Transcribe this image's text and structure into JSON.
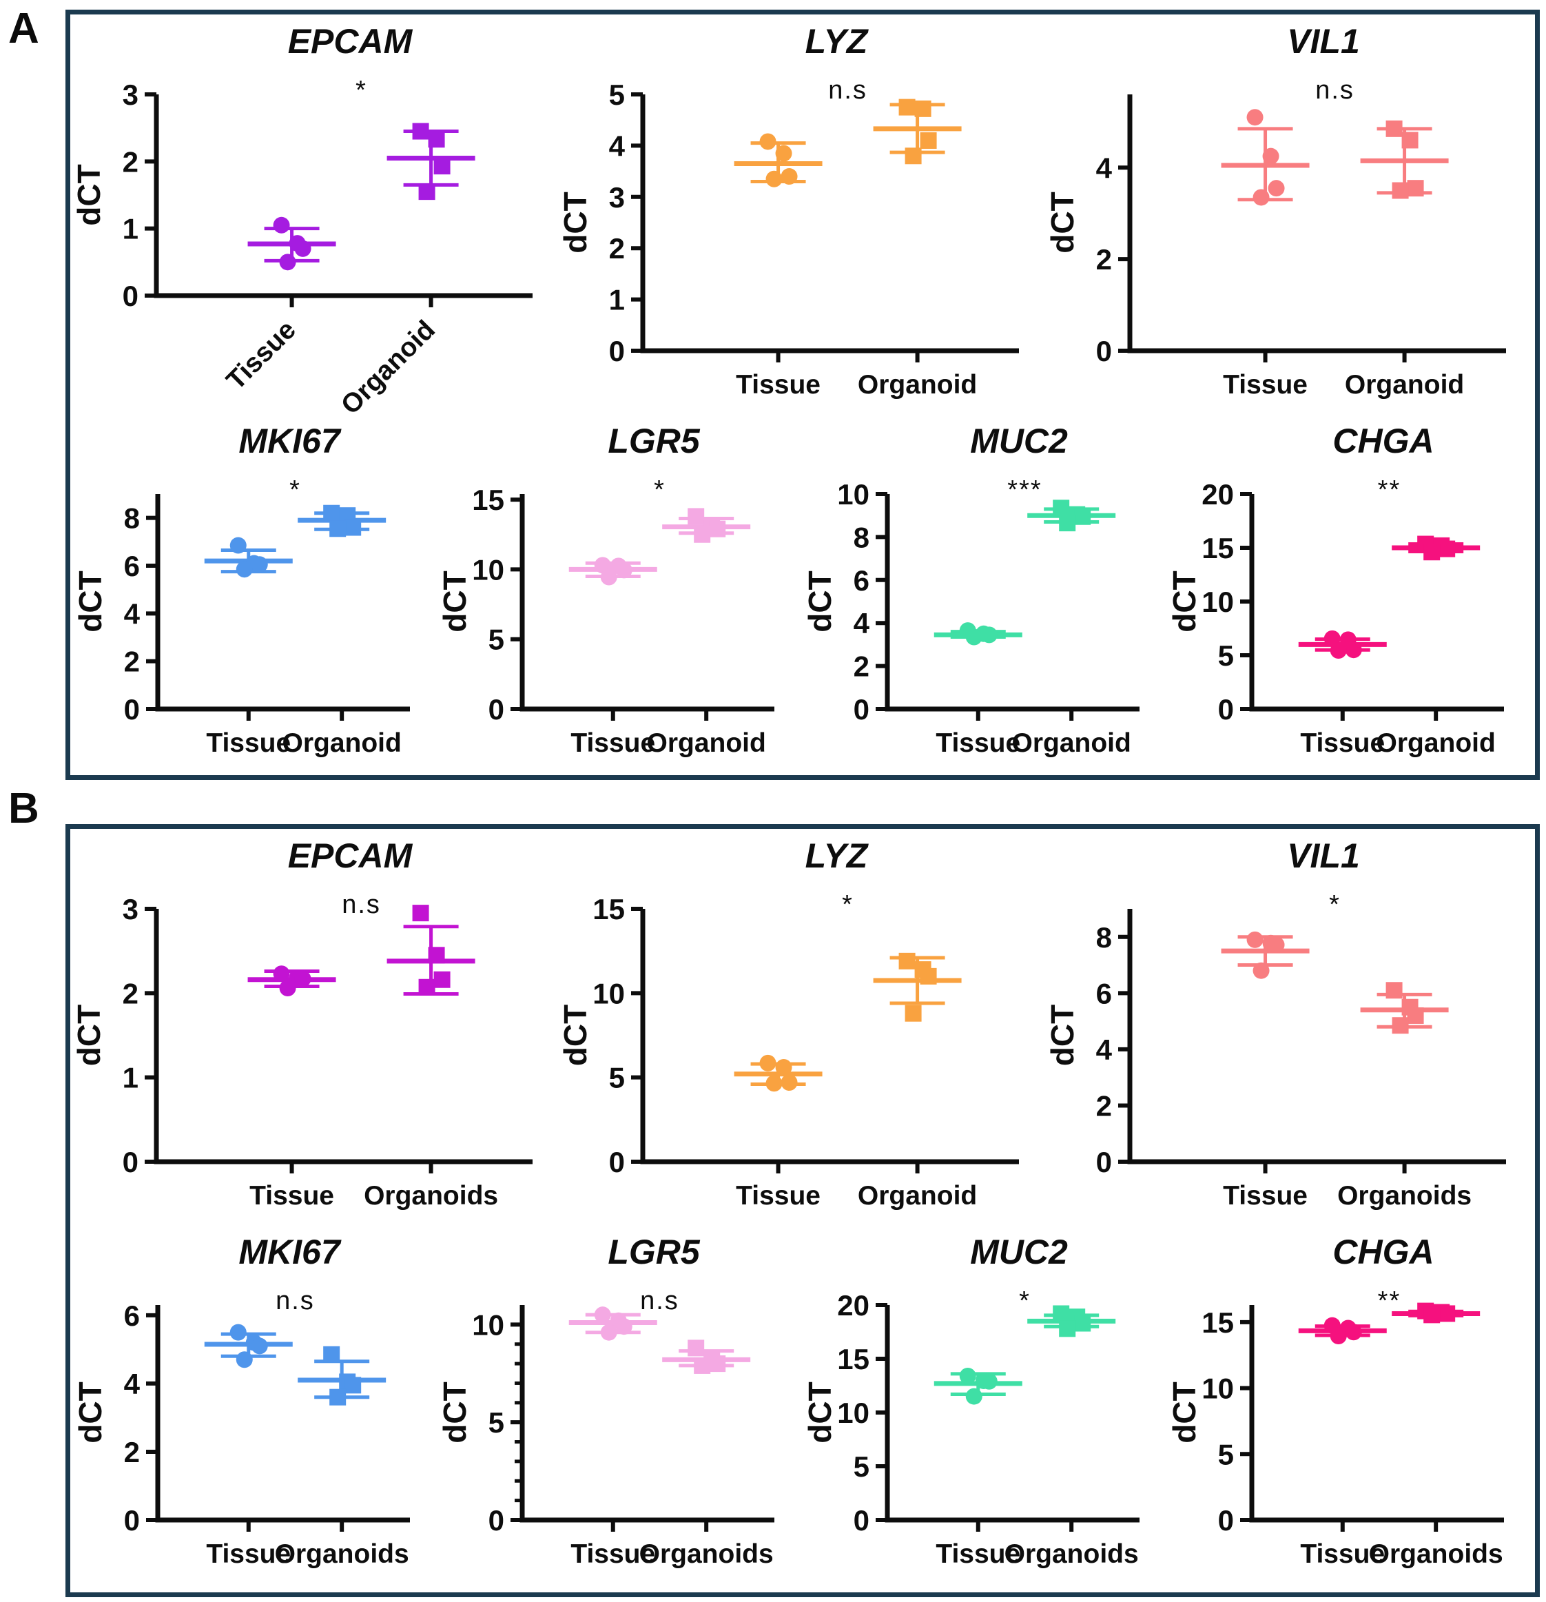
{
  "chart_data": {
    "type": "scatter",
    "ylabel": "dCT",
    "frame_color": "#1B3A4F",
    "marker_legend": {
      "tissue_marker": "circle",
      "organoid_marker": "square"
    },
    "panels": [
      {
        "label": "A",
        "plots": [
          {
            "gene": "EPCAM",
            "color": "#A51CE0",
            "significance": "*",
            "ylim": [
              0,
              3
            ],
            "yticks": [
              0,
              1,
              2,
              3
            ],
            "rotated_x_labels": true,
            "groups": [
              {
                "label": "Tissue",
                "marker": "circle",
                "values": [
                  1.05,
                  0.78,
                  0.7,
                  0.5
                ],
                "mean": 0.77,
                "err_low": 0.52,
                "err_high": 1.0
              },
              {
                "label": "Organoid",
                "marker": "square",
                "values": [
                  2.45,
                  2.33,
                  1.93,
                  1.55
                ],
                "mean": 2.05,
                "err_low": 1.65,
                "err_high": 2.45
              }
            ]
          },
          {
            "gene": "LYZ",
            "color": "#F9A240",
            "significance": "n.s",
            "ylim": [
              0,
              5
            ],
            "yticks": [
              0,
              1,
              2,
              3,
              4,
              5
            ],
            "rotated_x_labels": false,
            "groups": [
              {
                "label": "Tissue",
                "marker": "circle",
                "values": [
                  4.08,
                  3.85,
                  3.4,
                  3.35
                ],
                "mean": 3.65,
                "err_low": 3.3,
                "err_high": 4.05
              },
              {
                "label": "Organoid",
                "marker": "square",
                "values": [
                  4.75,
                  4.72,
                  4.1,
                  3.8
                ],
                "mean": 4.33,
                "err_low": 3.87,
                "err_high": 4.8
              }
            ]
          },
          {
            "gene": "VIL1",
            "color": "#F87D80",
            "significance": "n.s",
            "ylim": [
              0,
              5.6
            ],
            "yticks": [
              0,
              2,
              4
            ],
            "rotated_x_labels": false,
            "groups": [
              {
                "label": "Tissue",
                "marker": "circle",
                "values": [
                  5.1,
                  4.25,
                  3.55,
                  3.35
                ],
                "mean": 4.05,
                "err_low": 3.3,
                "err_high": 4.85
              },
              {
                "label": "Organoid",
                "marker": "square",
                "values": [
                  4.85,
                  4.6,
                  3.55,
                  3.5
                ],
                "mean": 4.15,
                "err_low": 3.45,
                "err_high": 4.85
              }
            ]
          },
          {
            "gene": "MKI67",
            "color": "#4F95EB",
            "significance": "*",
            "ylim": [
              0,
              9
            ],
            "yticks": [
              0,
              2,
              4,
              6,
              8
            ],
            "rotated_x_labels": false,
            "groups": [
              {
                "label": "Tissue",
                "marker": "circle",
                "values": [
                  6.85,
                  6.1,
                  6.05,
                  5.85
                ],
                "mean": 6.2,
                "err_low": 5.75,
                "err_high": 6.65
              },
              {
                "label": "Organoid",
                "marker": "square",
                "values": [
                  8.2,
                  8.1,
                  7.6,
                  7.55
                ],
                "mean": 7.9,
                "err_low": 7.52,
                "err_high": 8.2
              }
            ]
          },
          {
            "gene": "LGR5",
            "color": "#F4A9E3",
            "significance": "*",
            "ylim": [
              0,
              15.4
            ],
            "yticks": [
              0,
              5,
              10,
              15
            ],
            "rotated_x_labels": false,
            "groups": [
              {
                "label": "Tissue",
                "marker": "circle",
                "values": [
                  10.3,
                  10.25,
                  9.95,
                  9.45
                ],
                "mean": 10.0,
                "err_low": 9.5,
                "err_high": 10.45
              },
              {
                "label": "Organoid",
                "marker": "square",
                "values": [
                  13.8,
                  13.0,
                  12.9,
                  12.5
                ],
                "mean": 13.05,
                "err_low": 12.6,
                "err_high": 13.65
              }
            ]
          },
          {
            "gene": "MUC2",
            "color": "#3FDFA5",
            "significance": "***",
            "ylim": [
              0,
              10
            ],
            "yticks": [
              0,
              2,
              4,
              6,
              8,
              10
            ],
            "rotated_x_labels": false,
            "groups": [
              {
                "label": "Tissue",
                "marker": "circle",
                "values": [
                  3.65,
                  3.5,
                  3.45,
                  3.35
                ],
                "mean": 3.45,
                "err_low": 3.35,
                "err_high": 3.6
              },
              {
                "label": "Organoid",
                "marker": "square",
                "values": [
                  9.35,
                  9.05,
                  8.95,
                  8.65
                ],
                "mean": 9.0,
                "err_low": 8.7,
                "err_high": 9.3
              }
            ]
          },
          {
            "gene": "CHGA",
            "color": "#F5117E",
            "significance": "**",
            "ylim": [
              0,
              20
            ],
            "yticks": [
              0,
              5,
              10,
              15,
              20
            ],
            "rotated_x_labels": false,
            "groups": [
              {
                "label": "Tissue",
                "marker": "circle",
                "values": [
                  6.55,
                  6.45,
                  5.5,
                  5.45
                ],
                "mean": 6.0,
                "err_low": 5.5,
                "err_high": 6.5
              },
              {
                "label": "Organoid",
                "marker": "square",
                "values": [
                  15.35,
                  15.2,
                  14.9,
                  14.6
                ],
                "mean": 15.0,
                "err_low": 14.65,
                "err_high": 15.35
              }
            ]
          }
        ]
      },
      {
        "label": "B",
        "plots": [
          {
            "gene": "EPCAM",
            "color": "#C213D2",
            "significance": "n.s",
            "ylim": [
              0,
              3
            ],
            "yticks": [
              0,
              1,
              2,
              3
            ],
            "rotated_x_labels": false,
            "groups": [
              {
                "label": "Tissue",
                "marker": "circle",
                "values": [
                  2.23,
                  2.18,
                  2.17,
                  2.06
                ],
                "mean": 2.16,
                "err_low": 2.08,
                "err_high": 2.26
              },
              {
                "label": "Organoids",
                "marker": "square",
                "values": [
                  2.95,
                  2.45,
                  2.16,
                  2.07
                ],
                "mean": 2.38,
                "err_low": 1.99,
                "err_high": 2.79
              }
            ]
          },
          {
            "gene": "LYZ",
            "color": "#F9A240",
            "significance": "*",
            "ylim": [
              0,
              15
            ],
            "yticks": [
              0,
              5,
              10,
              15
            ],
            "rotated_x_labels": false,
            "groups": [
              {
                "label": "Tissue",
                "marker": "circle",
                "values": [
                  5.85,
                  5.6,
                  4.7,
                  4.65
                ],
                "mean": 5.2,
                "err_low": 4.6,
                "err_high": 5.8
              },
              {
                "label": "Organoid",
                "marker": "square",
                "values": [
                  11.9,
                  11.4,
                  11.0,
                  8.8
                ],
                "mean": 10.75,
                "err_low": 9.4,
                "err_high": 12.1
              }
            ]
          },
          {
            "gene": "VIL1",
            "color": "#F87D80",
            "significance": "*",
            "ylim": [
              0,
              9
            ],
            "yticks": [
              0,
              2,
              4,
              6,
              8
            ],
            "rotated_x_labels": false,
            "groups": [
              {
                "label": "Tissue",
                "marker": "circle",
                "values": [
                  7.9,
                  7.78,
                  7.72,
                  6.8
                ],
                "mean": 7.5,
                "err_low": 7.0,
                "err_high": 8.0
              },
              {
                "label": "Organoids",
                "marker": "square",
                "values": [
                  6.1,
                  5.5,
                  5.2,
                  4.85
                ],
                "mean": 5.4,
                "err_low": 4.8,
                "err_high": 5.95
              }
            ]
          },
          {
            "gene": "MKI67",
            "color": "#4F95EB",
            "significance": "n.s",
            "ylim": [
              0,
              6.3
            ],
            "yticks": [
              0,
              2,
              4,
              6
            ],
            "rotated_x_labels": false,
            "groups": [
              {
                "label": "Tissue",
                "marker": "circle",
                "values": [
                  5.5,
                  5.2,
                  5.1,
                  4.7
                ],
                "mean": 5.15,
                "err_low": 4.8,
                "err_high": 5.45
              },
              {
                "label": "Organoids",
                "marker": "square",
                "values": [
                  4.85,
                  4.05,
                  3.95,
                  3.6
                ],
                "mean": 4.1,
                "err_low": 3.6,
                "err_high": 4.65
              }
            ]
          },
          {
            "gene": "LGR5",
            "color": "#F4A9E3",
            "significance": "n.s",
            "ylim": [
              0,
              11
            ],
            "yticks": [
              0,
              5,
              10
            ],
            "yminor": 1,
            "rotated_x_labels": false,
            "groups": [
              {
                "label": "Tissue",
                "marker": "circle",
                "values": [
                  10.5,
                  10.2,
                  9.9,
                  9.6
                ],
                "mean": 10.1,
                "err_low": 9.6,
                "err_high": 10.5
              },
              {
                "label": "Organoids",
                "marker": "square",
                "values": [
                  8.8,
                  8.15,
                  8.0,
                  7.9
                ],
                "mean": 8.2,
                "err_low": 7.9,
                "err_high": 8.65
              }
            ]
          },
          {
            "gene": "MUC2",
            "color": "#3FDFA5",
            "significance": "*",
            "ylim": [
              0,
              20
            ],
            "yticks": [
              0,
              5,
              10,
              15,
              20
            ],
            "rotated_x_labels": false,
            "groups": [
              {
                "label": "Tissue",
                "marker": "circle",
                "values": [
                  13.4,
                  12.95,
                  12.9,
                  11.5
                ],
                "mean": 12.7,
                "err_low": 11.7,
                "err_high": 13.6
              },
              {
                "label": "Organoids",
                "marker": "square",
                "values": [
                  19.2,
                  18.9,
                  18.3,
                  17.8
                ],
                "mean": 18.5,
                "err_low": 18.0,
                "err_high": 19.05
              }
            ]
          },
          {
            "gene": "CHGA",
            "color": "#F5117E",
            "significance": "**",
            "ylim": [
              0,
              16.3
            ],
            "yticks": [
              0,
              5,
              10,
              15
            ],
            "rotated_x_labels": false,
            "groups": [
              {
                "label": "Tissue",
                "marker": "circle",
                "values": [
                  14.75,
                  14.55,
                  14.25,
                  13.95
                ],
                "mean": 14.35,
                "err_low": 14.0,
                "err_high": 14.7
              },
              {
                "label": "Organoids",
                "marker": "square",
                "values": [
                  15.85,
                  15.75,
                  15.65,
                  15.55
                ],
                "mean": 15.65,
                "err_low": 15.5,
                "err_high": 15.82
              }
            ]
          }
        ]
      }
    ]
  }
}
